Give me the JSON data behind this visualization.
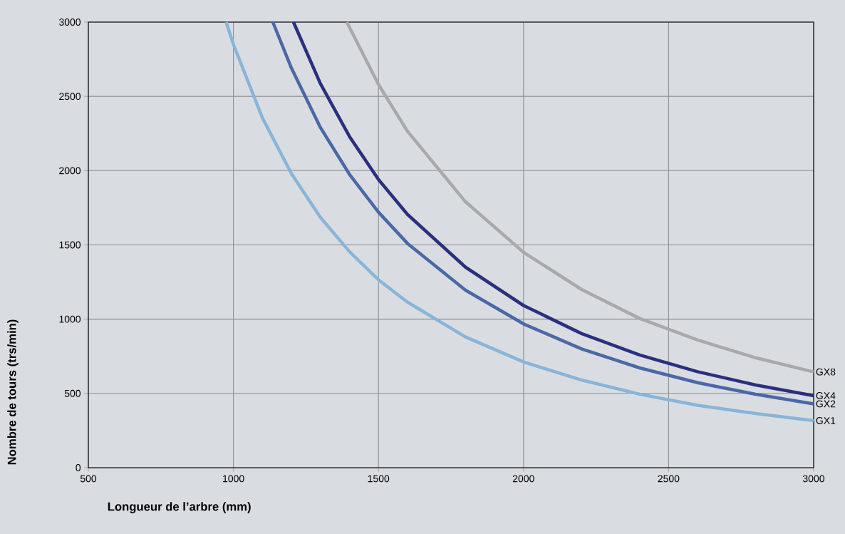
{
  "chart_data": {
    "type": "line",
    "xlabel": "Longueur de l’arbre (mm)",
    "ylabel": "Nombre de tours  (trs/min)",
    "xlim": [
      500,
      3000
    ],
    "ylim": [
      0,
      3000
    ],
    "xticks": [
      500,
      1000,
      1500,
      2000,
      2500,
      3000
    ],
    "yticks": [
      0,
      500,
      1000,
      1500,
      2000,
      2500,
      3000
    ],
    "grid": true,
    "legend": false,
    "marker": "none",
    "line_style": "solid",
    "series": [
      {
        "name": "GX1",
        "color": "#88b5d8",
        "x": [
          975,
          1000,
          1100,
          1200,
          1300,
          1400,
          1500,
          1600,
          1800,
          2000,
          2200,
          2400,
          2600,
          2800,
          3000
        ],
        "values": [
          3000,
          2850,
          2355,
          1980,
          1685,
          1455,
          1265,
          1115,
          880,
          712,
          590,
          495,
          420,
          365,
          317
        ]
      },
      {
        "name": "GX2",
        "color": "#4a68a8",
        "x": [
          1136,
          1200,
          1300,
          1400,
          1500,
          1600,
          1800,
          2000,
          2200,
          2400,
          2600,
          2800,
          3000
        ],
        "values": [
          3000,
          2690,
          2290,
          1975,
          1720,
          1510,
          1195,
          968,
          800,
          672,
          572,
          494,
          430
        ]
      },
      {
        "name": "GX4",
        "color": "#2a2f7e",
        "x": [
          1207,
          1300,
          1400,
          1500,
          1600,
          1800,
          2000,
          2200,
          2400,
          2600,
          2800,
          3000
        ],
        "values": [
          3000,
          2585,
          2230,
          1940,
          1705,
          1350,
          1092,
          903,
          759,
          646,
          557,
          485
        ]
      },
      {
        "name": "GX8",
        "color": "#a7a9ac",
        "x": [
          1391,
          1500,
          1600,
          1800,
          2000,
          2200,
          2400,
          2600,
          2800,
          3000
        ],
        "values": [
          3000,
          2580,
          2265,
          1790,
          1450,
          1200,
          1005,
          860,
          740,
          645
        ]
      }
    ]
  }
}
